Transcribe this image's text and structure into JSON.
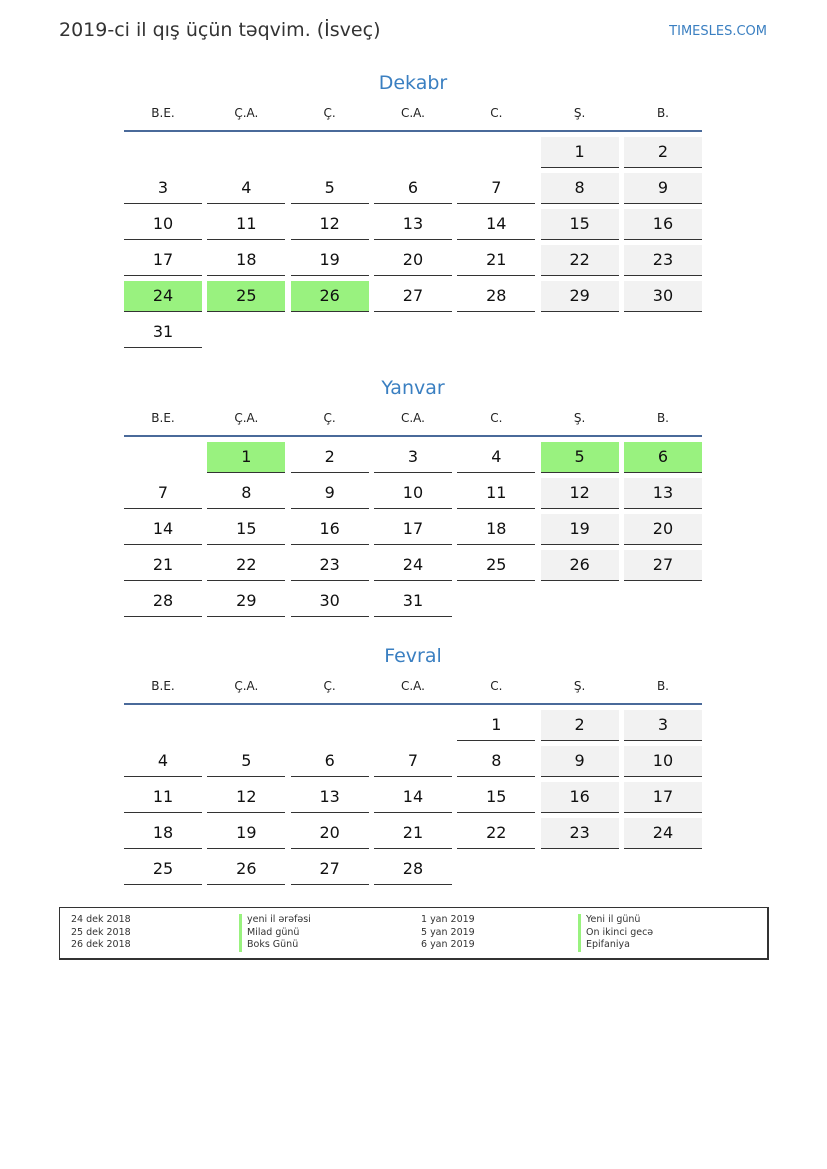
{
  "header": {
    "title": "2019-ci il qış üçün təqvim. (İsveç)",
    "brand": "TIMESLES.COM"
  },
  "weekdays": [
    "B.E.",
    "Ç.A.",
    "Ç.",
    "C.A.",
    "C.",
    "Ş.",
    "B."
  ],
  "colors": {
    "accent": "#3a7fc1",
    "holiday": "#99f27f",
    "weekend": "#f2f2f2"
  },
  "months": [
    {
      "name": "Dekabr",
      "weeks": [
        [
          null,
          null,
          null,
          null,
          null,
          1,
          2
        ],
        [
          3,
          4,
          5,
          6,
          7,
          8,
          9
        ],
        [
          10,
          11,
          12,
          13,
          14,
          15,
          16
        ],
        [
          17,
          18,
          19,
          20,
          21,
          22,
          23
        ],
        [
          24,
          25,
          26,
          27,
          28,
          29,
          30
        ],
        [
          31,
          null,
          null,
          null,
          null,
          null,
          null
        ]
      ],
      "holidays": [
        24,
        25,
        26
      ]
    },
    {
      "name": "Yanvar",
      "weeks": [
        [
          null,
          1,
          2,
          3,
          4,
          5,
          6
        ],
        [
          7,
          8,
          9,
          10,
          11,
          12,
          13
        ],
        [
          14,
          15,
          16,
          17,
          18,
          19,
          20
        ],
        [
          21,
          22,
          23,
          24,
          25,
          26,
          27
        ],
        [
          28,
          29,
          30,
          31,
          null,
          null,
          null
        ]
      ],
      "holidays": [
        1,
        5,
        6
      ]
    },
    {
      "name": "Fevral",
      "weeks": [
        [
          null,
          null,
          null,
          null,
          1,
          2,
          3
        ],
        [
          4,
          5,
          6,
          7,
          8,
          9,
          10
        ],
        [
          11,
          12,
          13,
          14,
          15,
          16,
          17
        ],
        [
          18,
          19,
          20,
          21,
          22,
          23,
          24
        ],
        [
          25,
          26,
          27,
          28,
          null,
          null,
          null
        ]
      ],
      "holidays": []
    }
  ],
  "legend": [
    {
      "date": "24 dek 2018",
      "name": "yeni il ərəfəsi"
    },
    {
      "date": "25 dek 2018",
      "name": "Milad günü"
    },
    {
      "date": "26 dek 2018",
      "name": "Boks Günü"
    },
    {
      "date": "1 yan 2019",
      "name": "Yeni il günü"
    },
    {
      "date": "5 yan 2019",
      "name": "On ikinci gecə"
    },
    {
      "date": "6 yan 2019",
      "name": "Epifaniya"
    }
  ]
}
